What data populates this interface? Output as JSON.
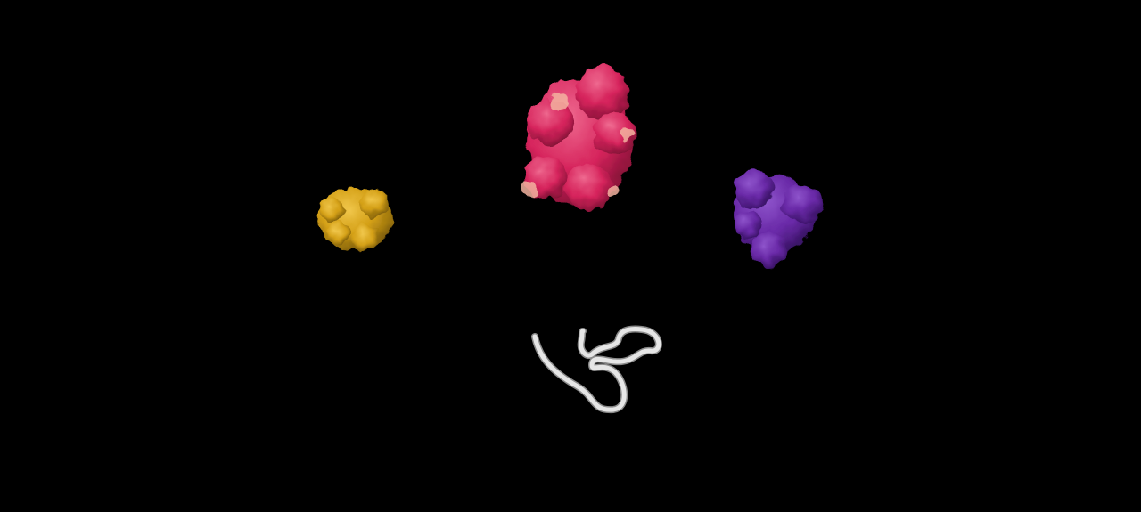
{
  "scene": {
    "background": "#000000",
    "molecules": [
      {
        "name": "gold-protein-surface",
        "kind": "surface",
        "color": "#d4a017",
        "shadow": "#7a5a08",
        "highlight": "#f0c64a"
      },
      {
        "name": "crimson-protein-surface",
        "kind": "surface",
        "color": "#d6245c",
        "shadow": "#7d0f33",
        "highlight": "#ef6a90",
        "patch_color": "#f3b3a0"
      },
      {
        "name": "purple-protein-surface",
        "kind": "surface",
        "color": "#6a2aa8",
        "shadow": "#351060",
        "highlight": "#8f55cc"
      },
      {
        "name": "peptide-backbone-tube",
        "kind": "tube",
        "color": "#e6e6e6",
        "shadow": "#8a8a8a"
      }
    ]
  }
}
